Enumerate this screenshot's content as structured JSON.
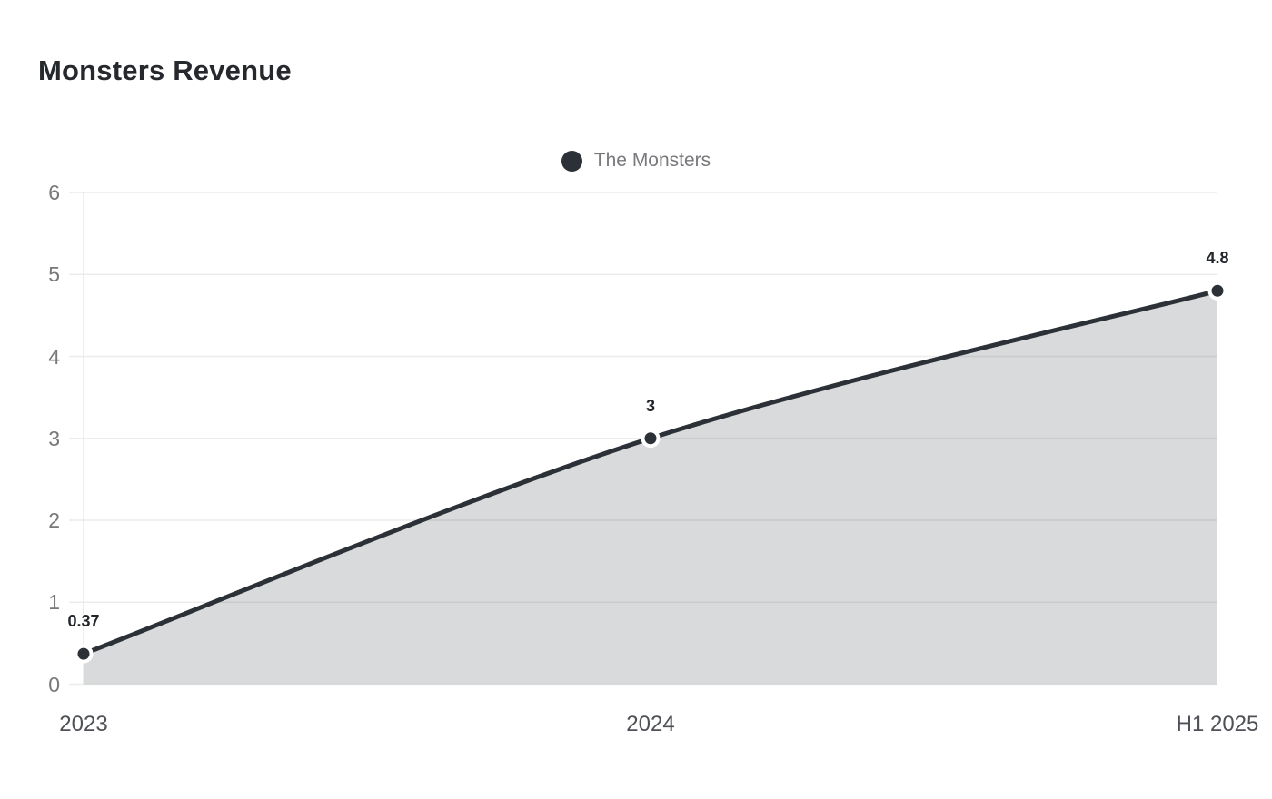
{
  "header": {
    "title": "Monsters Revenue"
  },
  "legend": {
    "items": [
      {
        "label": "The Monsters",
        "color": "#2b3137"
      }
    ]
  },
  "colors": {
    "line": "#2b3137",
    "marker_fill": "#2b3137",
    "marker_ring": "#ffffff",
    "area_fill": "rgba(43,48,54,0.18)",
    "gridline": "#ececec",
    "axis_line": "#e7e7e7",
    "title_text": "#25282c",
    "y_tick_text": "#787878",
    "x_tick_text": "#4e5155",
    "data_label_text": "#222529",
    "legend_text": "#77797c"
  },
  "chart_data": {
    "type": "area",
    "title": "Monsters Revenue",
    "categories": [
      "2023",
      "2024",
      "H1 2025"
    ],
    "series": [
      {
        "name": "The Monsters",
        "values": [
          0.37,
          3,
          4.8
        ]
      }
    ],
    "data_labels": [
      "0.37",
      "3",
      "4.8"
    ],
    "xlabel": "",
    "ylabel": "",
    "ylim": [
      0,
      6
    ],
    "yticks": [
      0,
      1,
      2,
      3,
      4,
      5,
      6
    ],
    "grid": true,
    "smooth": true,
    "legend_position": "top-center"
  }
}
